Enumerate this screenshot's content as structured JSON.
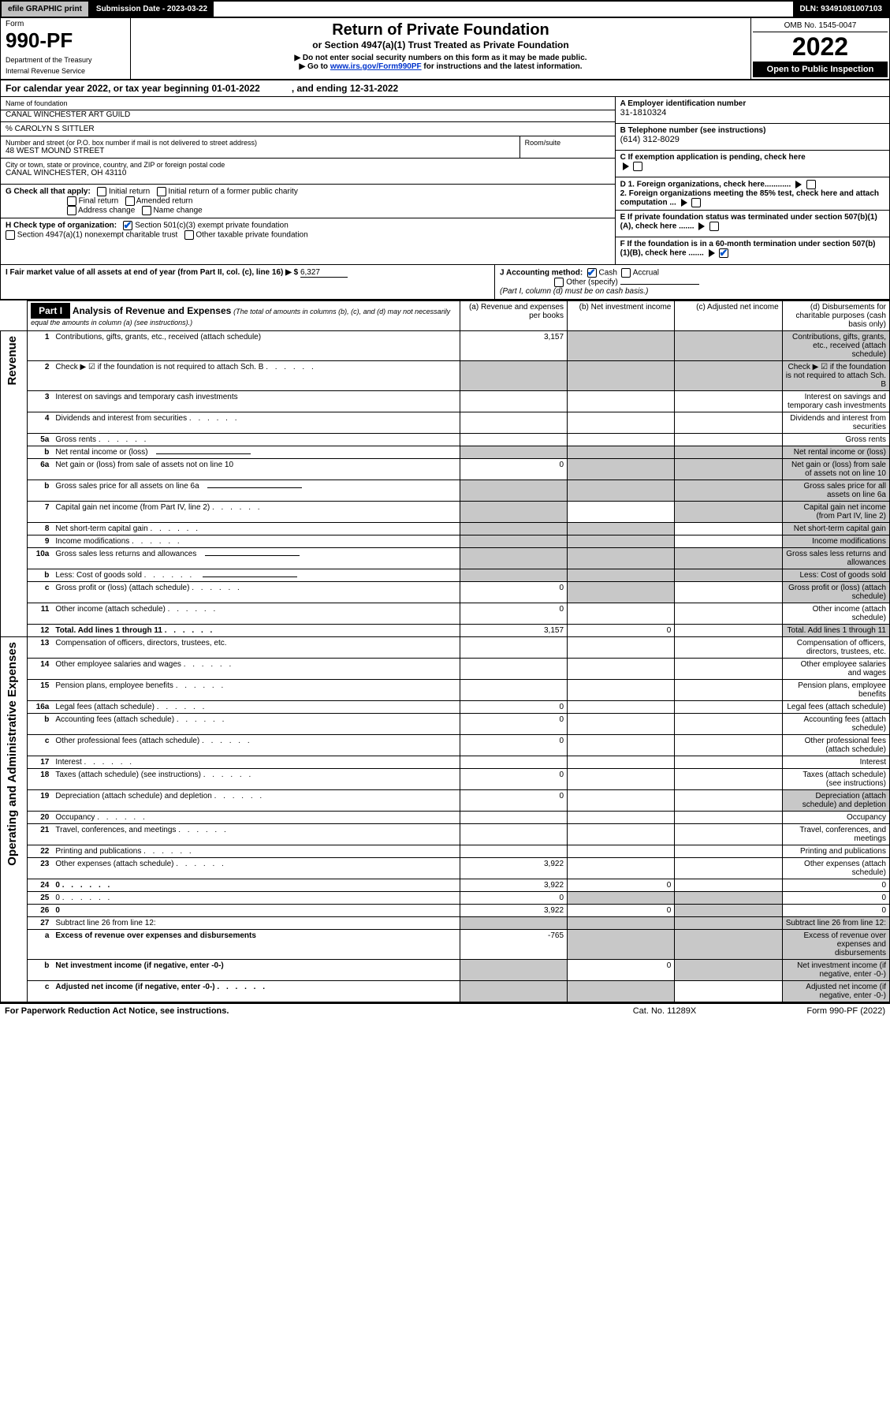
{
  "topbar": {
    "efile": "efile GRAPHIC print",
    "subdate_label": "Submission Date - 2023-03-22",
    "dln": "DLN: 93491081007103"
  },
  "header": {
    "form_label": "Form",
    "form_number": "990-PF",
    "dept": "Department of the Treasury",
    "irs": "Internal Revenue Service",
    "title": "Return of Private Foundation",
    "subtitle": "or Section 4947(a)(1) Trust Treated as Private Foundation",
    "instr1": "▶ Do not enter social security numbers on this form as it may be made public.",
    "instr2_prefix": "▶ Go to ",
    "instr2_link": "www.irs.gov/Form990PF",
    "instr2_suffix": " for instructions and the latest information.",
    "omb": "OMB No. 1545-0047",
    "year": "2022",
    "open": "Open to Public Inspection"
  },
  "cal": {
    "l1": "For calendar year 2022, or tax year beginning 01-01-2022",
    "l2": ", and ending 12-31-2022"
  },
  "left": {
    "name_lbl": "Name of foundation",
    "name": "CANAL WINCHESTER ART GUILD",
    "care": "% CAROLYN S SITTLER",
    "addr_lbl": "Number and street (or P.O. box number if mail is not delivered to street address)",
    "addr": "48 WEST MOUND STREET",
    "room_lbl": "Room/suite",
    "city_lbl": "City or town, state or province, country, and ZIP or foreign postal code",
    "city": "CANAL WINCHESTER, OH  43110",
    "g_lbl": "G Check all that apply:",
    "g_items": [
      "Initial return",
      "Initial return of a former public charity",
      "Final return",
      "Amended return",
      "Address change",
      "Name change"
    ],
    "h_lbl": "H Check type of organization:",
    "h1": "Section 501(c)(3) exempt private foundation",
    "h2": "Section 4947(a)(1) nonexempt charitable trust",
    "h3": "Other taxable private foundation",
    "i_lbl": "I Fair market value of all assets at end of year (from Part II, col. (c), line 16) ▶ $",
    "i_val": "6,327",
    "j_lbl": "J Accounting method:",
    "j_cash": "Cash",
    "j_accrual": "Accrual",
    "j_other": "Other (specify)",
    "j_note": "(Part I, column (d) must be on cash basis.)"
  },
  "right": {
    "a_lbl": "A Employer identification number",
    "a_val": "31-1810324",
    "b_lbl": "B Telephone number (see instructions)",
    "b_val": "(614) 312-8029",
    "c_lbl": "C If exemption application is pending, check here",
    "d1": "D 1. Foreign organizations, check here............",
    "d2": "2. Foreign organizations meeting the 85% test, check here and attach computation ...",
    "e_lbl": "E If private foundation status was terminated under section 507(b)(1)(A), check here .......",
    "f_lbl": "F If the foundation is in a 60-month termination under section 507(b)(1)(B), check here ......."
  },
  "part1": {
    "label": "Part I",
    "title": "Analysis of Revenue and Expenses",
    "note": "(The total of amounts in columns (b), (c), and (d) may not necessarily equal the amounts in column (a) (see instructions).)",
    "col_a": "(a)  Revenue and expenses per books",
    "col_b": "(b)  Net investment income",
    "col_c": "(c)  Adjusted net income",
    "col_d": "(d)  Disbursements for charitable purposes (cash basis only)",
    "side_rev": "Revenue",
    "side_exp": "Operating and Administrative Expenses"
  },
  "rows": [
    {
      "n": "1",
      "d": "Contributions, gifts, grants, etc., received (attach schedule)",
      "a": "3,157",
      "shade": [
        "b",
        "c",
        "d"
      ]
    },
    {
      "n": "2",
      "d": "Check ▶ ☑ if the foundation is not required to attach Sch. B",
      "dots": true,
      "shade": [
        "a",
        "b",
        "c",
        "d"
      ],
      "bold_not": true
    },
    {
      "n": "3",
      "d": "Interest on savings and temporary cash investments"
    },
    {
      "n": "4",
      "d": "Dividends and interest from securities",
      "dots": true
    },
    {
      "n": "5a",
      "d": "Gross rents",
      "dots": true
    },
    {
      "n": "b",
      "d": "Net rental income or (loss)",
      "shade": [
        "a",
        "b",
        "c",
        "d"
      ],
      "inline_box": true
    },
    {
      "n": "6a",
      "d": "Net gain or (loss) from sale of assets not on line 10",
      "a": "0",
      "shade": [
        "b",
        "c",
        "d"
      ]
    },
    {
      "n": "b",
      "d": "Gross sales price for all assets on line 6a",
      "shade": [
        "a",
        "b",
        "c",
        "d"
      ],
      "inline_box": true
    },
    {
      "n": "7",
      "d": "Capital gain net income (from Part IV, line 2)",
      "dots": true,
      "shade": [
        "a",
        "c",
        "d"
      ]
    },
    {
      "n": "8",
      "d": "Net short-term capital gain",
      "dots": true,
      "shade": [
        "a",
        "b",
        "d"
      ]
    },
    {
      "n": "9",
      "d": "Income modifications",
      "dots": true,
      "shade": [
        "a",
        "b",
        "d"
      ]
    },
    {
      "n": "10a",
      "d": "Gross sales less returns and allowances",
      "shade": [
        "a",
        "b",
        "c",
        "d"
      ],
      "inline_box": true
    },
    {
      "n": "b",
      "d": "Less: Cost of goods sold",
      "dots": true,
      "shade": [
        "a",
        "b",
        "c",
        "d"
      ],
      "inline_box": true
    },
    {
      "n": "c",
      "d": "Gross profit or (loss) (attach schedule)",
      "dots": true,
      "a": "0",
      "shade": [
        "b",
        "d"
      ]
    },
    {
      "n": "11",
      "d": "Other income (attach schedule)",
      "dots": true,
      "a": "0"
    },
    {
      "n": "12",
      "d": "Total. Add lines 1 through 11",
      "dots": true,
      "a": "3,157",
      "b": "0",
      "bold": true,
      "shade": [
        "d"
      ]
    },
    {
      "n": "13",
      "d": "Compensation of officers, directors, trustees, etc."
    },
    {
      "n": "14",
      "d": "Other employee salaries and wages",
      "dots": true
    },
    {
      "n": "15",
      "d": "Pension plans, employee benefits",
      "dots": true
    },
    {
      "n": "16a",
      "d": "Legal fees (attach schedule)",
      "dots": true,
      "a": "0"
    },
    {
      "n": "b",
      "d": "Accounting fees (attach schedule)",
      "dots": true,
      "a": "0"
    },
    {
      "n": "c",
      "d": "Other professional fees (attach schedule)",
      "dots": true,
      "a": "0"
    },
    {
      "n": "17",
      "d": "Interest",
      "dots": true
    },
    {
      "n": "18",
      "d": "Taxes (attach schedule) (see instructions)",
      "dots": true,
      "a": "0"
    },
    {
      "n": "19",
      "d": "Depreciation (attach schedule) and depletion",
      "dots": true,
      "a": "0",
      "shade": [
        "d"
      ]
    },
    {
      "n": "20",
      "d": "Occupancy",
      "dots": true
    },
    {
      "n": "21",
      "d": "Travel, conferences, and meetings",
      "dots": true
    },
    {
      "n": "22",
      "d": "Printing and publications",
      "dots": true
    },
    {
      "n": "23",
      "d": "Other expenses (attach schedule)",
      "dots": true,
      "a": "3,922"
    },
    {
      "n": "24",
      "d": "0",
      "dots": true,
      "a": "3,922",
      "b": "0",
      "bold": true
    },
    {
      "n": "25",
      "d": "0",
      "dots": true,
      "a": "0",
      "shade": [
        "b",
        "c"
      ]
    },
    {
      "n": "26",
      "d": "0",
      "a": "3,922",
      "b": "0",
      "bold": true,
      "shade": [
        "c"
      ]
    },
    {
      "n": "27",
      "d": "Subtract line 26 from line 12:",
      "shade": [
        "a",
        "b",
        "c",
        "d"
      ]
    },
    {
      "n": "a",
      "d": "Excess of revenue over expenses and disbursements",
      "a": "-765",
      "bold": true,
      "shade": [
        "b",
        "c",
        "d"
      ]
    },
    {
      "n": "b",
      "d": "Net investment income (if negative, enter -0-)",
      "b": "0",
      "bold": true,
      "shade": [
        "a",
        "c",
        "d"
      ]
    },
    {
      "n": "c",
      "d": "Adjusted net income (if negative, enter -0-)",
      "dots": true,
      "bold": true,
      "shade": [
        "a",
        "b",
        "d"
      ]
    }
  ],
  "footer": {
    "l": "For Paperwork Reduction Act Notice, see instructions.",
    "c": "Cat. No. 11289X",
    "r": "Form 990-PF (2022)"
  },
  "colors": {
    "shade": "#c8c8c8",
    "link": "#0033cc",
    "check": "#0055cc"
  }
}
